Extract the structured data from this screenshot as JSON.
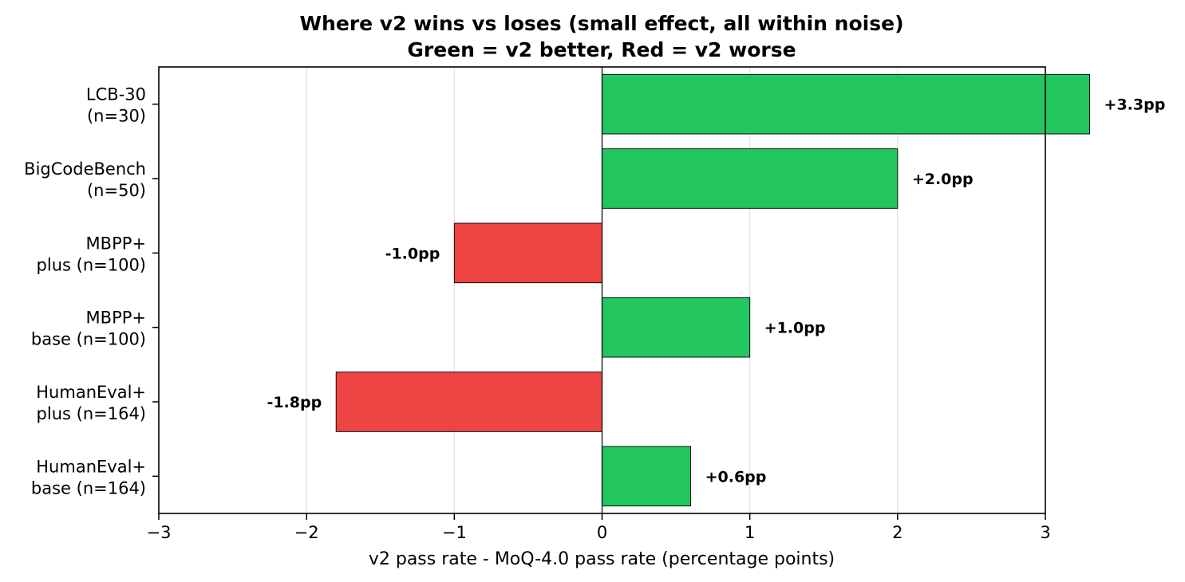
{
  "chart_data": {
    "type": "bar",
    "orientation": "horizontal",
    "title": "Where v2 wins vs loses (small effect, all within noise)",
    "subtitle": "Green = v2 better, Red = v2 worse",
    "xlabel": "v2 pass rate - MoQ-4.0 pass rate (percentage points)",
    "ylabel": "",
    "xlim": [
      -3,
      3
    ],
    "xticks": [
      -3,
      -2,
      -1,
      0,
      1,
      2,
      3
    ],
    "xtick_labels": [
      "−3",
      "−2",
      "−1",
      "0",
      "1",
      "2",
      "3"
    ],
    "grid": "vertical",
    "categories": [
      {
        "line1": "LCB-30",
        "line2": "(n=30)"
      },
      {
        "line1": "BigCodeBench",
        "line2": "(n=50)"
      },
      {
        "line1": "MBPP+",
        "line2": "plus (n=100)"
      },
      {
        "line1": "MBPP+",
        "line2": "base (n=100)"
      },
      {
        "line1": "HumanEval+",
        "line2": "plus (n=164)"
      },
      {
        "line1": "HumanEval+",
        "line2": "base (n=164)"
      }
    ],
    "values": [
      3.3,
      2.0,
      -1.0,
      1.0,
      -1.8,
      0.6
    ],
    "labels": [
      "+3.3pp",
      "+2.0pp",
      "-1.0pp",
      "+1.0pp",
      "-1.8pp",
      "+0.6pp"
    ],
    "colors": {
      "positive": "#22c55e",
      "negative": "#ef4444"
    }
  }
}
